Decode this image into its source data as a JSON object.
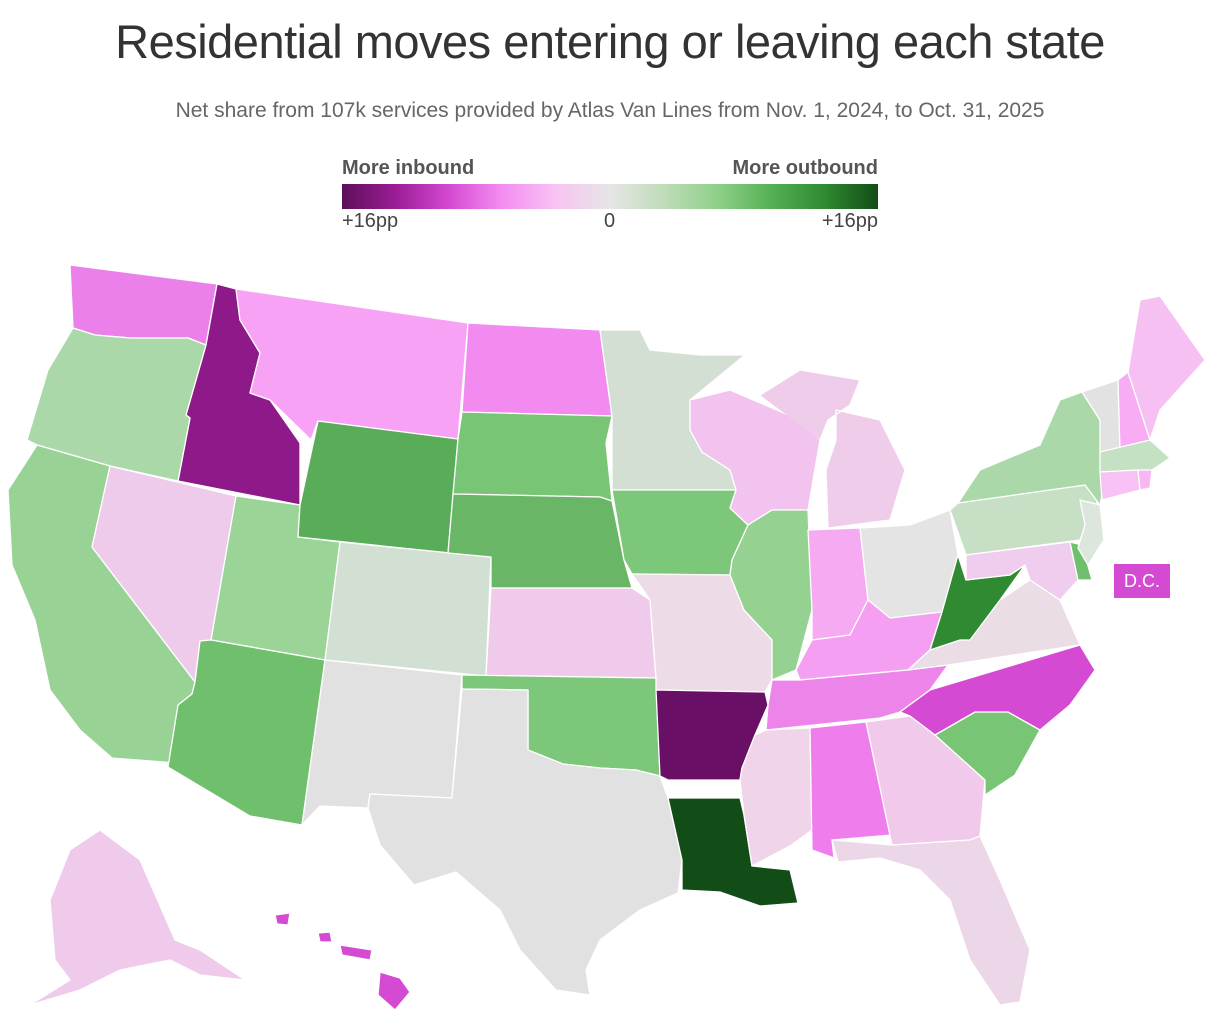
{
  "title": "Residential moves entering or leaving each state",
  "subtitle": "Net share from 107k services provided by Atlas Van Lines from Nov. 1, 2024, to Oct. 31, 2025",
  "legend": {
    "left_label": "More inbound",
    "right_label": "More outbound",
    "tick_left": "+16pp",
    "tick_mid": "0",
    "tick_right": "+16pp",
    "gradient_colors": [
      "#5c0f5a",
      "#9b1d96",
      "#d44ad2",
      "#f48ef2",
      "#f8c4f3",
      "#e6e6e6",
      "#bfdcb9",
      "#8fd08a",
      "#55b154",
      "#2f8a31",
      "#124d17"
    ]
  },
  "dc_label": "D.C.",
  "colors": {
    "WA": "#ec80eb",
    "OR": "#aad8a9",
    "CA": "#98d395",
    "NV": "#eecbeb",
    "ID": "#8e1a8a",
    "MT": "#f7a2f4",
    "WY": "#59ad59",
    "UT": "#9ad497",
    "AZ": "#6fbf6c",
    "CO": "#d2e0d4",
    "NM": "#e1e1e1",
    "ND": "#f28af0",
    "SD": "#78c575",
    "NE": "#69b766",
    "KS": "#efcaeb",
    "OK": "#7cc779",
    "TX": "#e1e1e1",
    "MN": "#d3dfd3",
    "IA": "#7cc779",
    "MO": "#eedbe8",
    "AR": "#6a0f66",
    "LA": "#124d17",
    "WI": "#f2c3ef",
    "IL": "#95d292",
    "MI": "#efcdea",
    "IN": "#f6aaf2",
    "OH": "#e4e4e4",
    "KY": "#f59ff2",
    "TN": "#ec84ea",
    "MS": "#efd4ea",
    "AL": "#ef7eec",
    "GA": "#f0c9eb",
    "FL": "#ebd7e7",
    "SC": "#78c575",
    "NC": "#d44ad2",
    "VA": "#eadde6",
    "WV": "#2f8a31",
    "PA": "#c7e0c5",
    "NY": "#aad8a9",
    "NJ": "#dde6dd",
    "DE": "#6fbf6c",
    "MD": "#f0cdee",
    "CT": "#f7c2f3",
    "RI": "#f7b7f3",
    "MA": "#c4e1c3",
    "VT": "#e2e2e2",
    "NH": "#f7acf4",
    "ME": "#f7c0f3",
    "AK": "#efcaeb",
    "HI": "#d44ad2",
    "DC": "#d54ad3"
  }
}
